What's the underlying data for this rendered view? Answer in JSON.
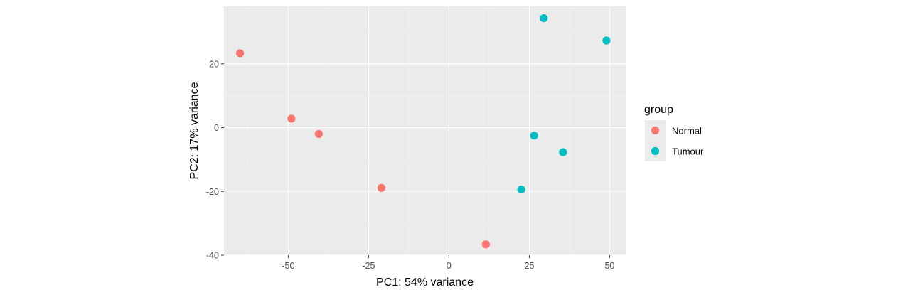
{
  "chart_data": {
    "type": "scatter",
    "title": "",
    "xlabel": "PC1: 54% variance",
    "ylabel": "PC2: 17% variance",
    "xlim": [
      -70,
      55
    ],
    "ylim": [
      -40,
      38
    ],
    "x_ticks": [
      -50,
      -25,
      0,
      25,
      50
    ],
    "y_ticks": [
      -40,
      -20,
      0,
      20
    ],
    "x_tick_labels": [
      "-50",
      "-25",
      "0",
      "25",
      "50"
    ],
    "y_tick_labels": [
      "-40",
      "-20",
      "0",
      "20"
    ],
    "grid": true,
    "legend": {
      "title": "group",
      "placement": "right"
    },
    "series": [
      {
        "name": "Normal",
        "color": "#F8766D",
        "points": [
          {
            "x": -65.0,
            "y": 23.3
          },
          {
            "x": -49.0,
            "y": 2.8
          },
          {
            "x": -40.5,
            "y": -2.0
          },
          {
            "x": -21.0,
            "y": -18.9
          },
          {
            "x": 11.5,
            "y": -36.6
          }
        ]
      },
      {
        "name": "Tumour",
        "color": "#00BFC4",
        "points": [
          {
            "x": 29.5,
            "y": 34.3
          },
          {
            "x": 49.0,
            "y": 27.3
          },
          {
            "x": 26.5,
            "y": -2.5
          },
          {
            "x": 35.5,
            "y": -7.7
          },
          {
            "x": 22.5,
            "y": -19.4
          }
        ]
      }
    ]
  }
}
